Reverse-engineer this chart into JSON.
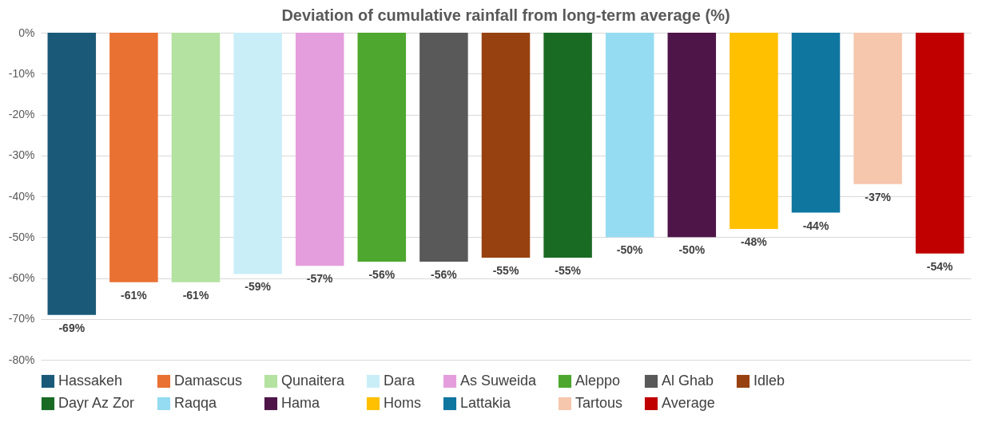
{
  "chart_data": {
    "type": "bar",
    "title": "Deviation of cumulative rainfall from long-term average (%)",
    "categories": [
      null,
      null,
      null,
      null,
      null,
      null,
      null,
      null,
      null,
      null,
      null,
      null,
      null,
      null,
      null
    ],
    "series": [
      {
        "name": "Hassakeh",
        "color": "#1a5a78",
        "values": [
          -69,
          null,
          null,
          null,
          null,
          null,
          null,
          null,
          null,
          null,
          null,
          null,
          null,
          null,
          null
        ],
        "value_labels": [
          "-69%",
          null,
          null,
          null,
          null,
          null,
          null,
          null,
          null,
          null,
          null,
          null,
          null,
          null,
          null
        ]
      },
      {
        "name": "Damascus",
        "color": "#e97132",
        "values": [
          null,
          -61,
          null,
          null,
          null,
          null,
          null,
          null,
          null,
          null,
          null,
          null,
          null,
          null,
          null
        ],
        "value_labels": [
          null,
          "-61%",
          null,
          null,
          null,
          null,
          null,
          null,
          null,
          null,
          null,
          null,
          null,
          null,
          null
        ]
      },
      {
        "name": "Qunaitera",
        "color": "#b3e2a1",
        "values": [
          null,
          null,
          -61,
          null,
          null,
          null,
          null,
          null,
          null,
          null,
          null,
          null,
          null,
          null,
          null
        ],
        "value_labels": [
          null,
          null,
          "-61%",
          null,
          null,
          null,
          null,
          null,
          null,
          null,
          null,
          null,
          null,
          null,
          null
        ]
      },
      {
        "name": "Dara",
        "color": "#caeef8",
        "values": [
          null,
          null,
          null,
          -59,
          null,
          null,
          null,
          null,
          null,
          null,
          null,
          null,
          null,
          null,
          null
        ],
        "value_labels": [
          null,
          null,
          null,
          "-59%",
          null,
          null,
          null,
          null,
          null,
          null,
          null,
          null,
          null,
          null,
          null
        ]
      },
      {
        "name": "As Suweida",
        "color": "#e59edd",
        "values": [
          null,
          null,
          null,
          null,
          -57,
          null,
          null,
          null,
          null,
          null,
          null,
          null,
          null,
          null,
          null
        ],
        "value_labels": [
          null,
          null,
          null,
          null,
          "-57%",
          null,
          null,
          null,
          null,
          null,
          null,
          null,
          null,
          null,
          null
        ]
      },
      {
        "name": "Aleppo",
        "color": "#4ea72e",
        "values": [
          null,
          null,
          null,
          null,
          null,
          -56,
          null,
          null,
          null,
          null,
          null,
          null,
          null,
          null,
          null
        ],
        "value_labels": [
          null,
          null,
          null,
          null,
          null,
          "-56%",
          null,
          null,
          null,
          null,
          null,
          null,
          null,
          null,
          null
        ]
      },
      {
        "name": "Al Ghab",
        "color": "#595959",
        "values": [
          null,
          null,
          null,
          null,
          null,
          null,
          -56,
          null,
          null,
          null,
          null,
          null,
          null,
          null,
          null
        ],
        "value_labels": [
          null,
          null,
          null,
          null,
          null,
          null,
          "-56%",
          null,
          null,
          null,
          null,
          null,
          null,
          null,
          null
        ]
      },
      {
        "name": "Idleb",
        "color": "#974110",
        "values": [
          null,
          null,
          null,
          null,
          null,
          null,
          null,
          -55,
          null,
          null,
          null,
          null,
          null,
          null,
          null
        ],
        "value_labels": [
          null,
          null,
          null,
          null,
          null,
          null,
          null,
          "-55%",
          null,
          null,
          null,
          null,
          null,
          null,
          null
        ]
      },
      {
        "name": "Dayr Az Zor",
        "color": "#196b24",
        "values": [
          null,
          null,
          null,
          null,
          null,
          null,
          null,
          null,
          -55,
          null,
          null,
          null,
          null,
          null,
          null
        ],
        "value_labels": [
          null,
          null,
          null,
          null,
          null,
          null,
          null,
          null,
          "-55%",
          null,
          null,
          null,
          null,
          null,
          null
        ]
      },
      {
        "name": "Raqqa",
        "color": "#95dcf2",
        "values": [
          null,
          null,
          null,
          null,
          null,
          null,
          null,
          null,
          null,
          -50,
          null,
          null,
          null,
          null,
          null
        ],
        "value_labels": [
          null,
          null,
          null,
          null,
          null,
          null,
          null,
          null,
          null,
          "-50%",
          null,
          null,
          null,
          null,
          null
        ]
      },
      {
        "name": "Hama",
        "color": "#4e1548",
        "values": [
          null,
          null,
          null,
          null,
          null,
          null,
          null,
          null,
          null,
          null,
          -50,
          null,
          null,
          null,
          null
        ],
        "value_labels": [
          null,
          null,
          null,
          null,
          null,
          null,
          null,
          null,
          null,
          null,
          "-50%",
          null,
          null,
          null,
          null
        ]
      },
      {
        "name": "Homs",
        "color": "#ffc000",
        "values": [
          null,
          null,
          null,
          null,
          null,
          null,
          null,
          null,
          null,
          null,
          null,
          -48,
          null,
          null,
          null
        ],
        "value_labels": [
          null,
          null,
          null,
          null,
          null,
          null,
          null,
          null,
          null,
          null,
          null,
          "-48%",
          null,
          null,
          null
        ]
      },
      {
        "name": "Lattakia",
        "color": "#0f76a0",
        "values": [
          null,
          null,
          null,
          null,
          null,
          null,
          null,
          null,
          null,
          null,
          null,
          null,
          -44,
          null,
          null
        ],
        "value_labels": [
          null,
          null,
          null,
          null,
          null,
          null,
          null,
          null,
          null,
          null,
          null,
          null,
          "-44%",
          null,
          null
        ]
      },
      {
        "name": "Tartous",
        "color": "#f6c6ad",
        "values": [
          null,
          null,
          null,
          null,
          null,
          null,
          null,
          null,
          null,
          null,
          null,
          null,
          null,
          -37,
          null
        ],
        "value_labels": [
          null,
          null,
          null,
          null,
          null,
          null,
          null,
          null,
          null,
          null,
          null,
          null,
          null,
          "-37%",
          null
        ]
      },
      {
        "name": "Average",
        "color": "#c00000",
        "values": [
          null,
          null,
          null,
          null,
          null,
          null,
          null,
          null,
          null,
          null,
          null,
          null,
          null,
          null,
          -54
        ],
        "value_labels": [
          null,
          null,
          null,
          null,
          null,
          null,
          null,
          null,
          null,
          null,
          null,
          null,
          null,
          null,
          "-54%"
        ]
      }
    ],
    "ylim": [
      -80,
      0
    ],
    "yticks": [
      {
        "value": 0,
        "label": "0%"
      },
      {
        "value": -10,
        "label": "-10%"
      },
      {
        "value": -20,
        "label": "-20%"
      },
      {
        "value": -30,
        "label": "-30%"
      },
      {
        "value": -40,
        "label": "-40%"
      },
      {
        "value": -50,
        "label": "-50%"
      },
      {
        "value": -60,
        "label": "-60%"
      },
      {
        "value": -70,
        "label": "-70%"
      },
      {
        "value": -80,
        "label": "-80%"
      }
    ],
    "grid": "y",
    "legend": "bottom"
  }
}
